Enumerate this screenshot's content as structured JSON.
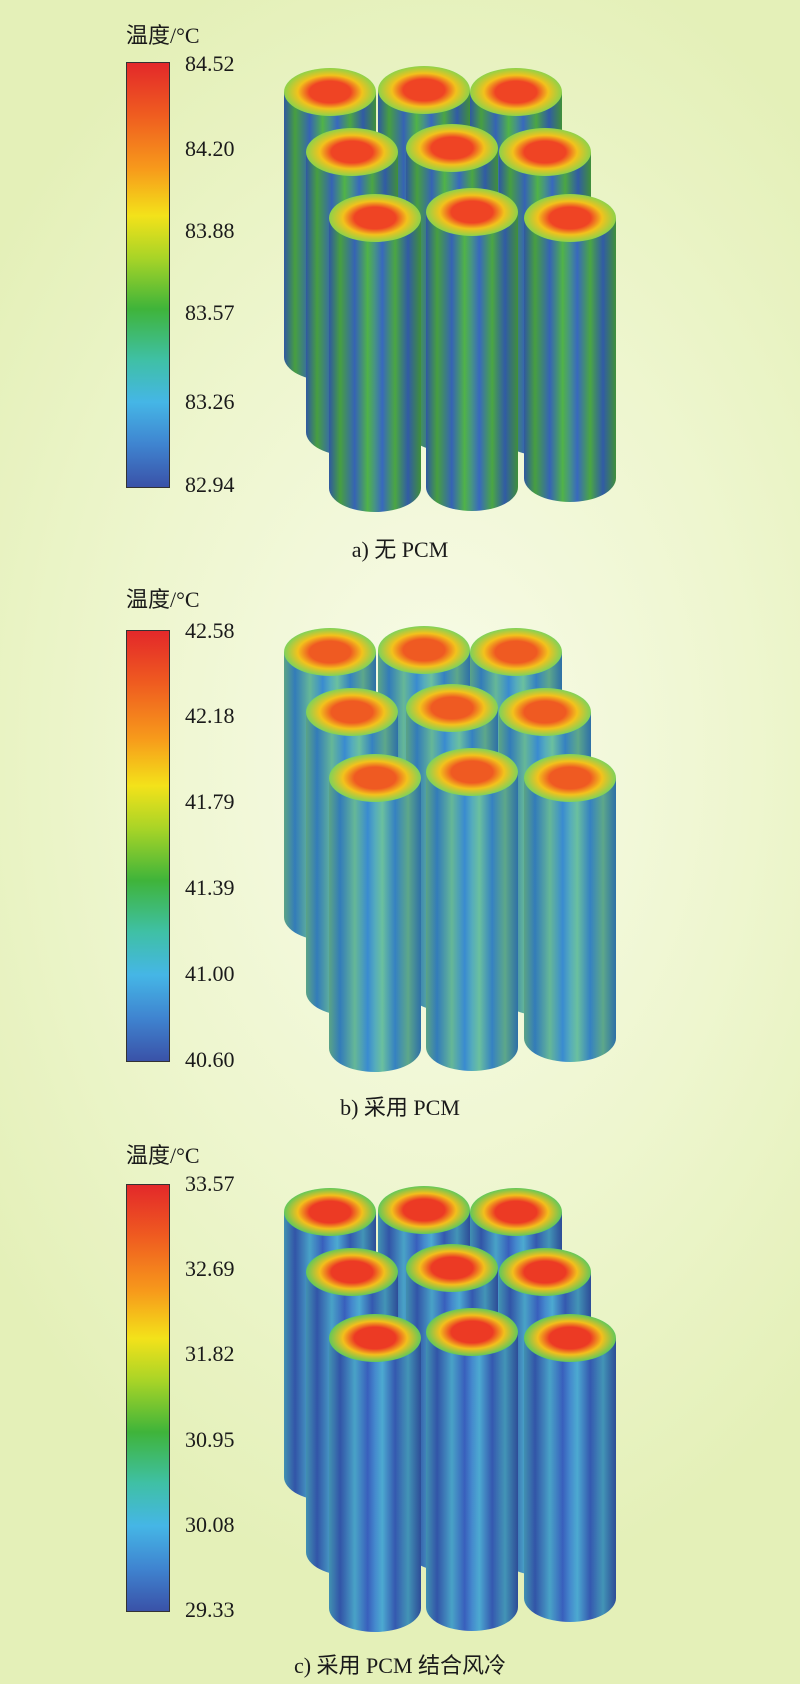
{
  "panels": [
    {
      "legend_title": "温度/°C",
      "ticks": [
        "84.52",
        "84.20",
        "83.88",
        "83.57",
        "83.26",
        "82.94"
      ],
      "caption": "a) 无 PCM",
      "side_color": "#52b84a",
      "side_stripe": "#3a6cc4",
      "top_outer": "#8ed24a",
      "top_mid": "#f2c21c",
      "top_core": "#ef4424"
    },
    {
      "legend_title": "温度/°C",
      "ticks": [
        "42.58",
        "42.18",
        "41.79",
        "41.39",
        "41.00",
        "40.60"
      ],
      "caption": "b) 采用 PCM",
      "side_color": "#3b8fd6",
      "side_stripe": "#6ec7a4",
      "top_outer": "#7fd25a",
      "top_mid": "#f3c21c",
      "top_core": "#ef5a22"
    },
    {
      "legend_title": "温度/°C",
      "ticks": [
        "33.57",
        "32.69",
        "31.82",
        "30.95",
        "30.08",
        "29.33"
      ],
      "caption": "c) 采用 PCM 结合风冷",
      "side_color": "#3a62c2",
      "side_stripe": "#4fb0d8",
      "top_outer": "#62c85a",
      "top_mid": "#f3bf1c",
      "top_core": "#ec3a24"
    }
  ]
}
